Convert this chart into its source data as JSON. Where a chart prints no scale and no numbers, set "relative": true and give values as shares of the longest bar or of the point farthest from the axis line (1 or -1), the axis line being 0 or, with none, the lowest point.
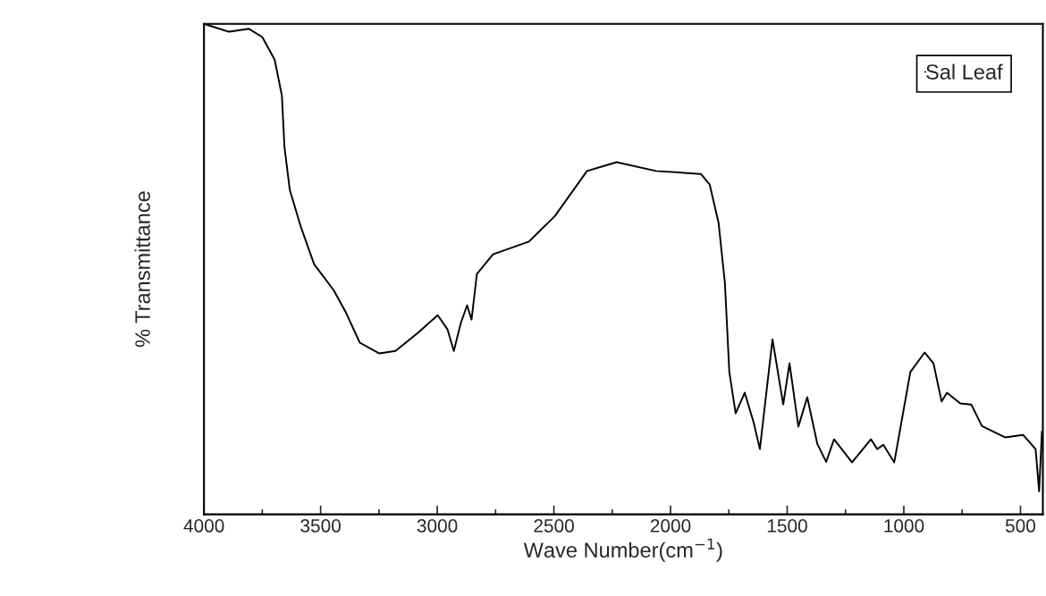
{
  "chart_data": {
    "type": "line",
    "relative": true,
    "xlabel": "Wave Number(cm$^{−1}$)",
    "ylabel": "% Transmittance",
    "xlim": [
      4000,
      404
    ],
    "xticks": [
      4000,
      3500,
      3000,
      2500,
      2000,
      1500,
      1000,
      500
    ],
    "legend": "top right",
    "grid": false,
    "marker": "none",
    "line_style": "solid",
    "series": [
      {
        "name": "Sal Leaf",
        "color": "#000000",
        "x": [
          4000,
          3893,
          3808,
          3750,
          3697,
          3666,
          3655,
          3632,
          3586,
          3528,
          3444,
          3390,
          3332,
          3248,
          3179,
          3083,
          2998,
          2956,
          2929,
          2899,
          2872,
          2853,
          2830,
          2761,
          2607,
          2496,
          2358,
          2273,
          2231,
          2062,
          1870,
          1832,
          1794,
          1767,
          1748,
          1721,
          1682,
          1644,
          1617,
          1563,
          1517,
          1490,
          1452,
          1414,
          1371,
          1333,
          1299,
          1222,
          1141,
          1114,
          1088,
          1041,
          972,
          911,
          873,
          838,
          815,
          758,
          711,
          665,
          566,
          489,
          435,
          420,
          408
        ],
        "values": [
          1.0,
          0.984,
          0.99,
          0.973,
          0.927,
          0.854,
          0.749,
          0.661,
          0.588,
          0.51,
          0.457,
          0.41,
          0.35,
          0.328,
          0.333,
          0.37,
          0.406,
          0.377,
          0.333,
          0.39,
          0.426,
          0.397,
          0.49,
          0.53,
          0.556,
          0.608,
          0.7,
          0.712,
          0.718,
          0.7,
          0.694,
          0.672,
          0.594,
          0.472,
          0.29,
          0.206,
          0.248,
          0.188,
          0.133,
          0.357,
          0.224,
          0.308,
          0.179,
          0.239,
          0.144,
          0.107,
          0.153,
          0.106,
          0.153,
          0.133,
          0.142,
          0.106,
          0.29,
          0.33,
          0.308,
          0.23,
          0.248,
          0.226,
          0.224,
          0.18,
          0.157,
          0.162,
          0.133,
          0.047,
          0.169
        ]
      }
    ]
  }
}
